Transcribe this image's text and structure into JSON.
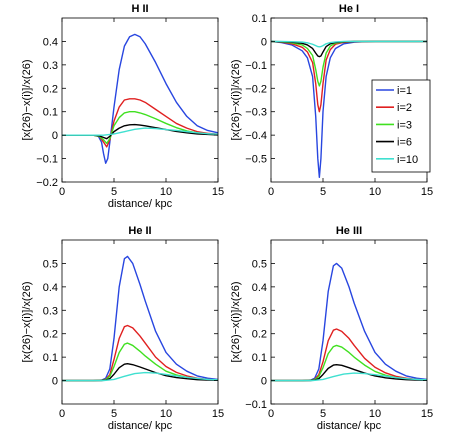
{
  "chart_data": [
    {
      "type": "line",
      "title": "H II",
      "xlabel": "distance/ kpc",
      "ylabel": "[x(26)−x(i)]/x(26)",
      "xlim": [
        0,
        15
      ],
      "ylim": [
        -0.2,
        0.5
      ],
      "xticks": [
        0,
        5,
        10,
        15
      ],
      "yticks": [
        -0.2,
        -0.1,
        0,
        0.1,
        0.2,
        0.3,
        0.4
      ],
      "yticklabels": [
        "−0.2",
        "−0.1",
        "0",
        "0.1",
        "0.2",
        "0.3",
        "0.4"
      ],
      "grid": false,
      "series": [
        {
          "name": "i=1",
          "color": "#2846e0",
          "x": [
            0,
            3,
            3.5,
            3.8,
            4.0,
            4.2,
            4.4,
            4.6,
            5.0,
            5.5,
            6.0,
            6.5,
            7.0,
            7.5,
            8.0,
            9.0,
            10,
            11,
            12,
            13,
            14,
            15
          ],
          "y": [
            0,
            0,
            -0.005,
            -0.03,
            -0.08,
            -0.12,
            -0.1,
            -0.03,
            0.12,
            0.28,
            0.38,
            0.42,
            0.43,
            0.42,
            0.39,
            0.31,
            0.22,
            0.14,
            0.08,
            0.04,
            0.02,
            0.01
          ]
        },
        {
          "name": "i=2",
          "color": "#e02020",
          "x": [
            0,
            3,
            3.6,
            4.0,
            4.3,
            4.6,
            5.0,
            5.5,
            6.0,
            6.5,
            7.0,
            7.5,
            8.0,
            9.0,
            10,
            11,
            12,
            13,
            14,
            15
          ],
          "y": [
            0,
            0,
            -0.005,
            -0.03,
            -0.05,
            -0.02,
            0.06,
            0.12,
            0.15,
            0.155,
            0.155,
            0.15,
            0.14,
            0.11,
            0.08,
            0.05,
            0.03,
            0.015,
            0.008,
            0.004
          ]
        },
        {
          "name": "i=3",
          "color": "#40e020",
          "x": [
            0,
            3,
            3.6,
            4.0,
            4.3,
            4.6,
            5.0,
            5.5,
            6.0,
            6.5,
            7.0,
            7.5,
            8.0,
            9.0,
            10,
            11,
            12,
            13,
            14,
            15
          ],
          "y": [
            0,
            0,
            -0.005,
            -0.02,
            -0.035,
            -0.015,
            0.04,
            0.075,
            0.095,
            0.1,
            0.1,
            0.095,
            0.088,
            0.07,
            0.05,
            0.032,
            0.018,
            0.01,
            0.005,
            0.002
          ]
        },
        {
          "name": "i=6",
          "color": "#000000",
          "x": [
            0,
            3,
            3.6,
            4.0,
            4.3,
            4.6,
            5.0,
            5.5,
            6.0,
            6.5,
            7.0,
            7.5,
            8.0,
            9.0,
            10,
            11,
            12,
            13,
            14,
            15
          ],
          "y": [
            0,
            0,
            -0.003,
            -0.01,
            -0.015,
            -0.005,
            0.015,
            0.03,
            0.04,
            0.044,
            0.045,
            0.043,
            0.04,
            0.032,
            0.024,
            0.016,
            0.01,
            0.005,
            0.003,
            0.001
          ]
        },
        {
          "name": "i=10",
          "color": "#40e0d0",
          "x": [
            0,
            4,
            5,
            6,
            7,
            8,
            9,
            10,
            11,
            12,
            13,
            14,
            15
          ],
          "y": [
            0,
            0,
            0.005,
            0.015,
            0.025,
            0.03,
            0.028,
            0.024,
            0.02,
            0.015,
            0.01,
            0.006,
            0.004
          ]
        }
      ]
    },
    {
      "type": "line",
      "title": "He I",
      "xlabel": "",
      "ylabel": "[x(26)−x(i)]/x(26)",
      "xlim": [
        0,
        15
      ],
      "ylim": [
        -0.6,
        0.1
      ],
      "xticks": [
        0,
        5,
        10,
        15
      ],
      "yticks": [
        -0.5,
        -0.4,
        -0.3,
        -0.2,
        -0.1,
        0,
        0.1
      ],
      "yticklabels": [
        "−0.5",
        "−0.4",
        "−0.3",
        "−0.2",
        "−0.1",
        "0",
        "0.1"
      ],
      "grid": false,
      "legend": "right",
      "series": [
        {
          "name": "i=1",
          "color": "#2846e0",
          "x": [
            0,
            1,
            2,
            3,
            3.5,
            4.0,
            4.3,
            4.5,
            4.65,
            4.8,
            5.0,
            5.3,
            5.7,
            6.2,
            7,
            8,
            9,
            10,
            12,
            15
          ],
          "y": [
            0,
            -0.005,
            -0.015,
            -0.04,
            -0.07,
            -0.15,
            -0.32,
            -0.5,
            -0.58,
            -0.5,
            -0.3,
            -0.15,
            -0.07,
            -0.03,
            -0.01,
            -0.003,
            -0.001,
            0,
            0,
            0
          ]
        },
        {
          "name": "i=2",
          "color": "#e02020",
          "x": [
            0,
            1,
            2,
            3,
            3.5,
            4.0,
            4.3,
            4.5,
            4.65,
            4.8,
            5.0,
            5.3,
            5.7,
            6.2,
            7,
            8,
            10,
            15
          ],
          "y": [
            0,
            -0.003,
            -0.01,
            -0.025,
            -0.045,
            -0.09,
            -0.18,
            -0.27,
            -0.3,
            -0.27,
            -0.18,
            -0.08,
            -0.035,
            -0.012,
            -0.004,
            -0.001,
            0,
            0
          ]
        },
        {
          "name": "i=3",
          "color": "#40e020",
          "x": [
            0,
            1,
            2,
            3,
            3.5,
            4.0,
            4.3,
            4.5,
            4.65,
            4.8,
            5.0,
            5.3,
            5.7,
            6.2,
            7,
            8,
            10,
            15
          ],
          "y": [
            0,
            -0.002,
            -0.006,
            -0.015,
            -0.03,
            -0.06,
            -0.12,
            -0.17,
            -0.19,
            -0.17,
            -0.11,
            -0.05,
            -0.02,
            -0.007,
            -0.002,
            0,
            0,
            0
          ]
        },
        {
          "name": "i=6",
          "color": "#000000",
          "x": [
            0,
            1,
            2,
            3,
            3.5,
            4.0,
            4.3,
            4.5,
            4.65,
            4.8,
            5.0,
            5.3,
            5.7,
            6.2,
            7,
            8,
            10,
            15
          ],
          "y": [
            0,
            -0.001,
            -0.003,
            -0.008,
            -0.015,
            -0.03,
            -0.05,
            -0.062,
            -0.065,
            -0.062,
            -0.045,
            -0.022,
            -0.01,
            -0.004,
            -0.001,
            0,
            0,
            0
          ]
        },
        {
          "name": "i=10",
          "color": "#40e0d0",
          "x": [
            0,
            1,
            2,
            3,
            3.5,
            4.0,
            4.3,
            4.5,
            4.65,
            4.8,
            5.0,
            5.3,
            5.7,
            6.2,
            7,
            8,
            10,
            15
          ],
          "y": [
            0,
            0,
            -0.001,
            -0.003,
            -0.006,
            -0.012,
            -0.018,
            -0.022,
            -0.023,
            -0.022,
            -0.018,
            -0.01,
            -0.005,
            -0.002,
            0,
            0,
            0,
            0
          ]
        }
      ]
    },
    {
      "type": "line",
      "title": "He II",
      "xlabel": "distance/ kpc",
      "ylabel": "[x(26)−x(i)]/x(26)",
      "xlim": [
        0,
        15
      ],
      "ylim": [
        -0.1,
        0.6
      ],
      "xticks": [
        0,
        5,
        10,
        15
      ],
      "yticks": [
        0,
        0.1,
        0.2,
        0.3,
        0.4,
        0.5
      ],
      "yticklabels": [
        "0",
        "0.1",
        "0.2",
        "0.3",
        "0.4",
        "0.5"
      ],
      "grid": false,
      "series": [
        {
          "name": "i=1",
          "color": "#2846e0",
          "x": [
            0,
            3,
            3.8,
            4.2,
            4.6,
            5.0,
            5.5,
            6.0,
            6.3,
            6.8,
            7.5,
            8.0,
            9.0,
            10,
            11,
            12,
            13,
            14,
            15
          ],
          "y": [
            0,
            0,
            0.002,
            0.01,
            0.05,
            0.18,
            0.4,
            0.52,
            0.53,
            0.5,
            0.41,
            0.34,
            0.21,
            0.12,
            0.07,
            0.04,
            0.02,
            0.01,
            0.005
          ]
        },
        {
          "name": "i=2",
          "color": "#e02020",
          "x": [
            0,
            3,
            3.8,
            4.2,
            4.6,
            5.0,
            5.5,
            6.0,
            6.3,
            6.8,
            7.5,
            8.0,
            9.0,
            10,
            11,
            12,
            13,
            14,
            15
          ],
          "y": [
            0,
            0,
            0.001,
            0.005,
            0.025,
            0.09,
            0.18,
            0.23,
            0.235,
            0.225,
            0.19,
            0.16,
            0.1,
            0.06,
            0.035,
            0.02,
            0.01,
            0.005,
            0.002
          ]
        },
        {
          "name": "i=3",
          "color": "#40e020",
          "x": [
            0,
            3,
            3.8,
            4.2,
            4.6,
            5.0,
            5.5,
            6.0,
            6.3,
            6.8,
            7.5,
            8.0,
            9.0,
            10,
            11,
            12,
            13,
            14,
            15
          ],
          "y": [
            0,
            0,
            0.001,
            0.004,
            0.018,
            0.06,
            0.12,
            0.155,
            0.16,
            0.15,
            0.125,
            0.105,
            0.07,
            0.04,
            0.024,
            0.014,
            0.007,
            0.004,
            0.002
          ]
        },
        {
          "name": "i=6",
          "color": "#000000",
          "x": [
            0,
            3,
            3.8,
            4.2,
            4.6,
            5.0,
            5.5,
            6.0,
            6.3,
            6.8,
            7.5,
            8.0,
            9.0,
            10,
            11,
            12,
            13,
            14,
            15
          ],
          "y": [
            0,
            0,
            0,
            0.002,
            0.008,
            0.027,
            0.055,
            0.07,
            0.072,
            0.068,
            0.058,
            0.05,
            0.034,
            0.021,
            0.013,
            0.008,
            0.004,
            0.002,
            0.001
          ]
        },
        {
          "name": "i=10",
          "color": "#40e0d0",
          "x": [
            0,
            4,
            5,
            6,
            7,
            8,
            9,
            10,
            11,
            12,
            13,
            14,
            15
          ],
          "y": [
            0,
            0,
            0.005,
            0.018,
            0.03,
            0.034,
            0.032,
            0.026,
            0.02,
            0.014,
            0.009,
            0.005,
            0.003
          ]
        }
      ]
    },
    {
      "type": "line",
      "title": "He III",
      "xlabel": "distance/ kpc",
      "ylabel": "[x(26)−x(i)]/x(26)",
      "xlim": [
        0,
        15
      ],
      "ylim": [
        -0.1,
        0.6
      ],
      "xticks": [
        0,
        5,
        10,
        15
      ],
      "yticks": [
        -0.1,
        0,
        0.1,
        0.2,
        0.3,
        0.4,
        0.5
      ],
      "yticklabels": [
        "−0.1",
        "0",
        "0.1",
        "0.2",
        "0.3",
        "0.4",
        "0.5"
      ],
      "grid": false,
      "series": [
        {
          "name": "i=1",
          "color": "#2846e0",
          "x": [
            0,
            3,
            3.8,
            4.2,
            4.6,
            5.0,
            5.5,
            6.0,
            6.3,
            6.8,
            7.5,
            8.0,
            9.0,
            10,
            11,
            12,
            13,
            14,
            15
          ],
          "y": [
            0,
            0,
            0.002,
            0.01,
            0.05,
            0.17,
            0.38,
            0.49,
            0.5,
            0.48,
            0.4,
            0.33,
            0.21,
            0.12,
            0.07,
            0.04,
            0.02,
            0.01,
            0.005
          ]
        },
        {
          "name": "i=2",
          "color": "#e02020",
          "x": [
            0,
            3,
            3.8,
            4.2,
            4.6,
            5.0,
            5.5,
            6.0,
            6.3,
            6.8,
            7.5,
            8.0,
            9.0,
            10,
            11,
            12,
            13,
            14,
            15
          ],
          "y": [
            0,
            0,
            0.001,
            0.005,
            0.025,
            0.08,
            0.17,
            0.215,
            0.22,
            0.21,
            0.18,
            0.15,
            0.095,
            0.057,
            0.033,
            0.018,
            0.01,
            0.005,
            0.002
          ]
        },
        {
          "name": "i=3",
          "color": "#40e020",
          "x": [
            0,
            3,
            3.8,
            4.2,
            4.6,
            5.0,
            5.5,
            6.0,
            6.3,
            6.8,
            7.5,
            8.0,
            9.0,
            10,
            11,
            12,
            13,
            14,
            15
          ],
          "y": [
            0,
            0,
            0.001,
            0.004,
            0.017,
            0.055,
            0.115,
            0.145,
            0.15,
            0.143,
            0.12,
            0.1,
            0.066,
            0.039,
            0.023,
            0.013,
            0.007,
            0.004,
            0.002
          ]
        },
        {
          "name": "i=6",
          "color": "#000000",
          "x": [
            0,
            3,
            3.8,
            4.2,
            4.6,
            5.0,
            5.5,
            6.0,
            6.3,
            6.8,
            7.5,
            8.0,
            9.0,
            10,
            11,
            12,
            13,
            14,
            15
          ],
          "y": [
            0,
            0,
            0,
            0.002,
            0.008,
            0.026,
            0.052,
            0.066,
            0.068,
            0.065,
            0.055,
            0.047,
            0.032,
            0.02,
            0.012,
            0.007,
            0.004,
            0.002,
            0.001
          ]
        },
        {
          "name": "i=10",
          "color": "#40e0d0",
          "x": [
            0,
            4,
            5,
            6,
            7,
            8,
            9,
            10,
            11,
            12,
            13,
            14,
            15
          ],
          "y": [
            0,
            0,
            0.005,
            0.017,
            0.028,
            0.032,
            0.03,
            0.025,
            0.019,
            0.013,
            0.008,
            0.005,
            0.003
          ]
        }
      ]
    }
  ]
}
